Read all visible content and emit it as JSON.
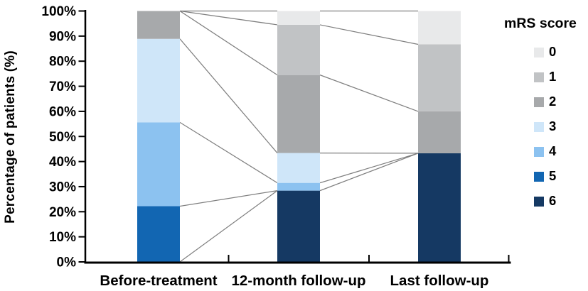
{
  "figure": {
    "background": "#ffffff",
    "axis_color": "#000000",
    "connector_color": "#7f7f7f"
  },
  "legend": {
    "title": "mRS score"
  },
  "chart_data": {
    "type": "bar",
    "stacked": true,
    "title": "",
    "xlabel": "",
    "ylabel": "Percentage of patients (%)",
    "ylim": [
      0,
      100
    ],
    "ytick_step": 10,
    "ytick_suffix": "%",
    "ytick_labels": [
      "0%",
      "10%",
      "20%",
      "30%",
      "40%",
      "50%",
      "60%",
      "70%",
      "80%",
      "90%",
      "100%"
    ],
    "grid": false,
    "legend_title": "mRS score",
    "legend_position": "right",
    "categories": [
      "Before-treatment",
      "12-month follow-up",
      "Last follow-up"
    ],
    "series": [
      {
        "name": "0",
        "color": "#e8e9ea",
        "values": [
          0,
          5.5,
          13.3
        ]
      },
      {
        "name": "1",
        "color": "#c1c3c5",
        "values": [
          0,
          20.0,
          26.7
        ]
      },
      {
        "name": "2",
        "color": "#a7a9ab",
        "values": [
          11.1,
          31.1,
          16.7
        ]
      },
      {
        "name": "3",
        "color": "#cfe6f9",
        "values": [
          33.3,
          11.9,
          0
        ]
      },
      {
        "name": "4",
        "color": "#8cc2f0",
        "values": [
          33.4,
          3.1,
          0
        ]
      },
      {
        "name": "5",
        "color": "#1266b2",
        "values": [
          22.2,
          0,
          0
        ]
      },
      {
        "name": "6",
        "color": "#153963",
        "values": [
          0,
          28.4,
          43.3
        ]
      }
    ],
    "series_visual_order_bottom_to_top": [
      "6",
      "5",
      "4",
      "3",
      "2",
      "1",
      "0"
    ],
    "connectors": [
      {
        "from_bar": 0,
        "to_bar": 1,
        "from_pct": 100,
        "to_pct": 100
      },
      {
        "from_bar": 0,
        "to_bar": 1,
        "from_pct": 100,
        "to_pct": 94.5
      },
      {
        "from_bar": 0,
        "to_bar": 1,
        "from_pct": 100,
        "to_pct": 74.5
      },
      {
        "from_bar": 0,
        "to_bar": 1,
        "from_pct": 88.9,
        "to_pct": 43.4
      },
      {
        "from_bar": 0,
        "to_bar": 1,
        "from_pct": 55.6,
        "to_pct": 31.5
      },
      {
        "from_bar": 0,
        "to_bar": 1,
        "from_pct": 22.2,
        "to_pct": 28.4
      },
      {
        "from_bar": 0,
        "to_bar": 1,
        "from_pct": 0,
        "to_pct": 28.4
      },
      {
        "from_bar": 1,
        "to_bar": 2,
        "from_pct": 100,
        "to_pct": 100
      },
      {
        "from_bar": 1,
        "to_bar": 2,
        "from_pct": 94.5,
        "to_pct": 86.7
      },
      {
        "from_bar": 1,
        "to_bar": 2,
        "from_pct": 74.5,
        "to_pct": 60.0
      },
      {
        "from_bar": 1,
        "to_bar": 2,
        "from_pct": 43.4,
        "to_pct": 43.3
      },
      {
        "from_bar": 1,
        "to_bar": 2,
        "from_pct": 31.5,
        "to_pct": 43.3
      },
      {
        "from_bar": 1,
        "to_bar": 2,
        "from_pct": 28.4,
        "to_pct": 43.3
      }
    ]
  }
}
